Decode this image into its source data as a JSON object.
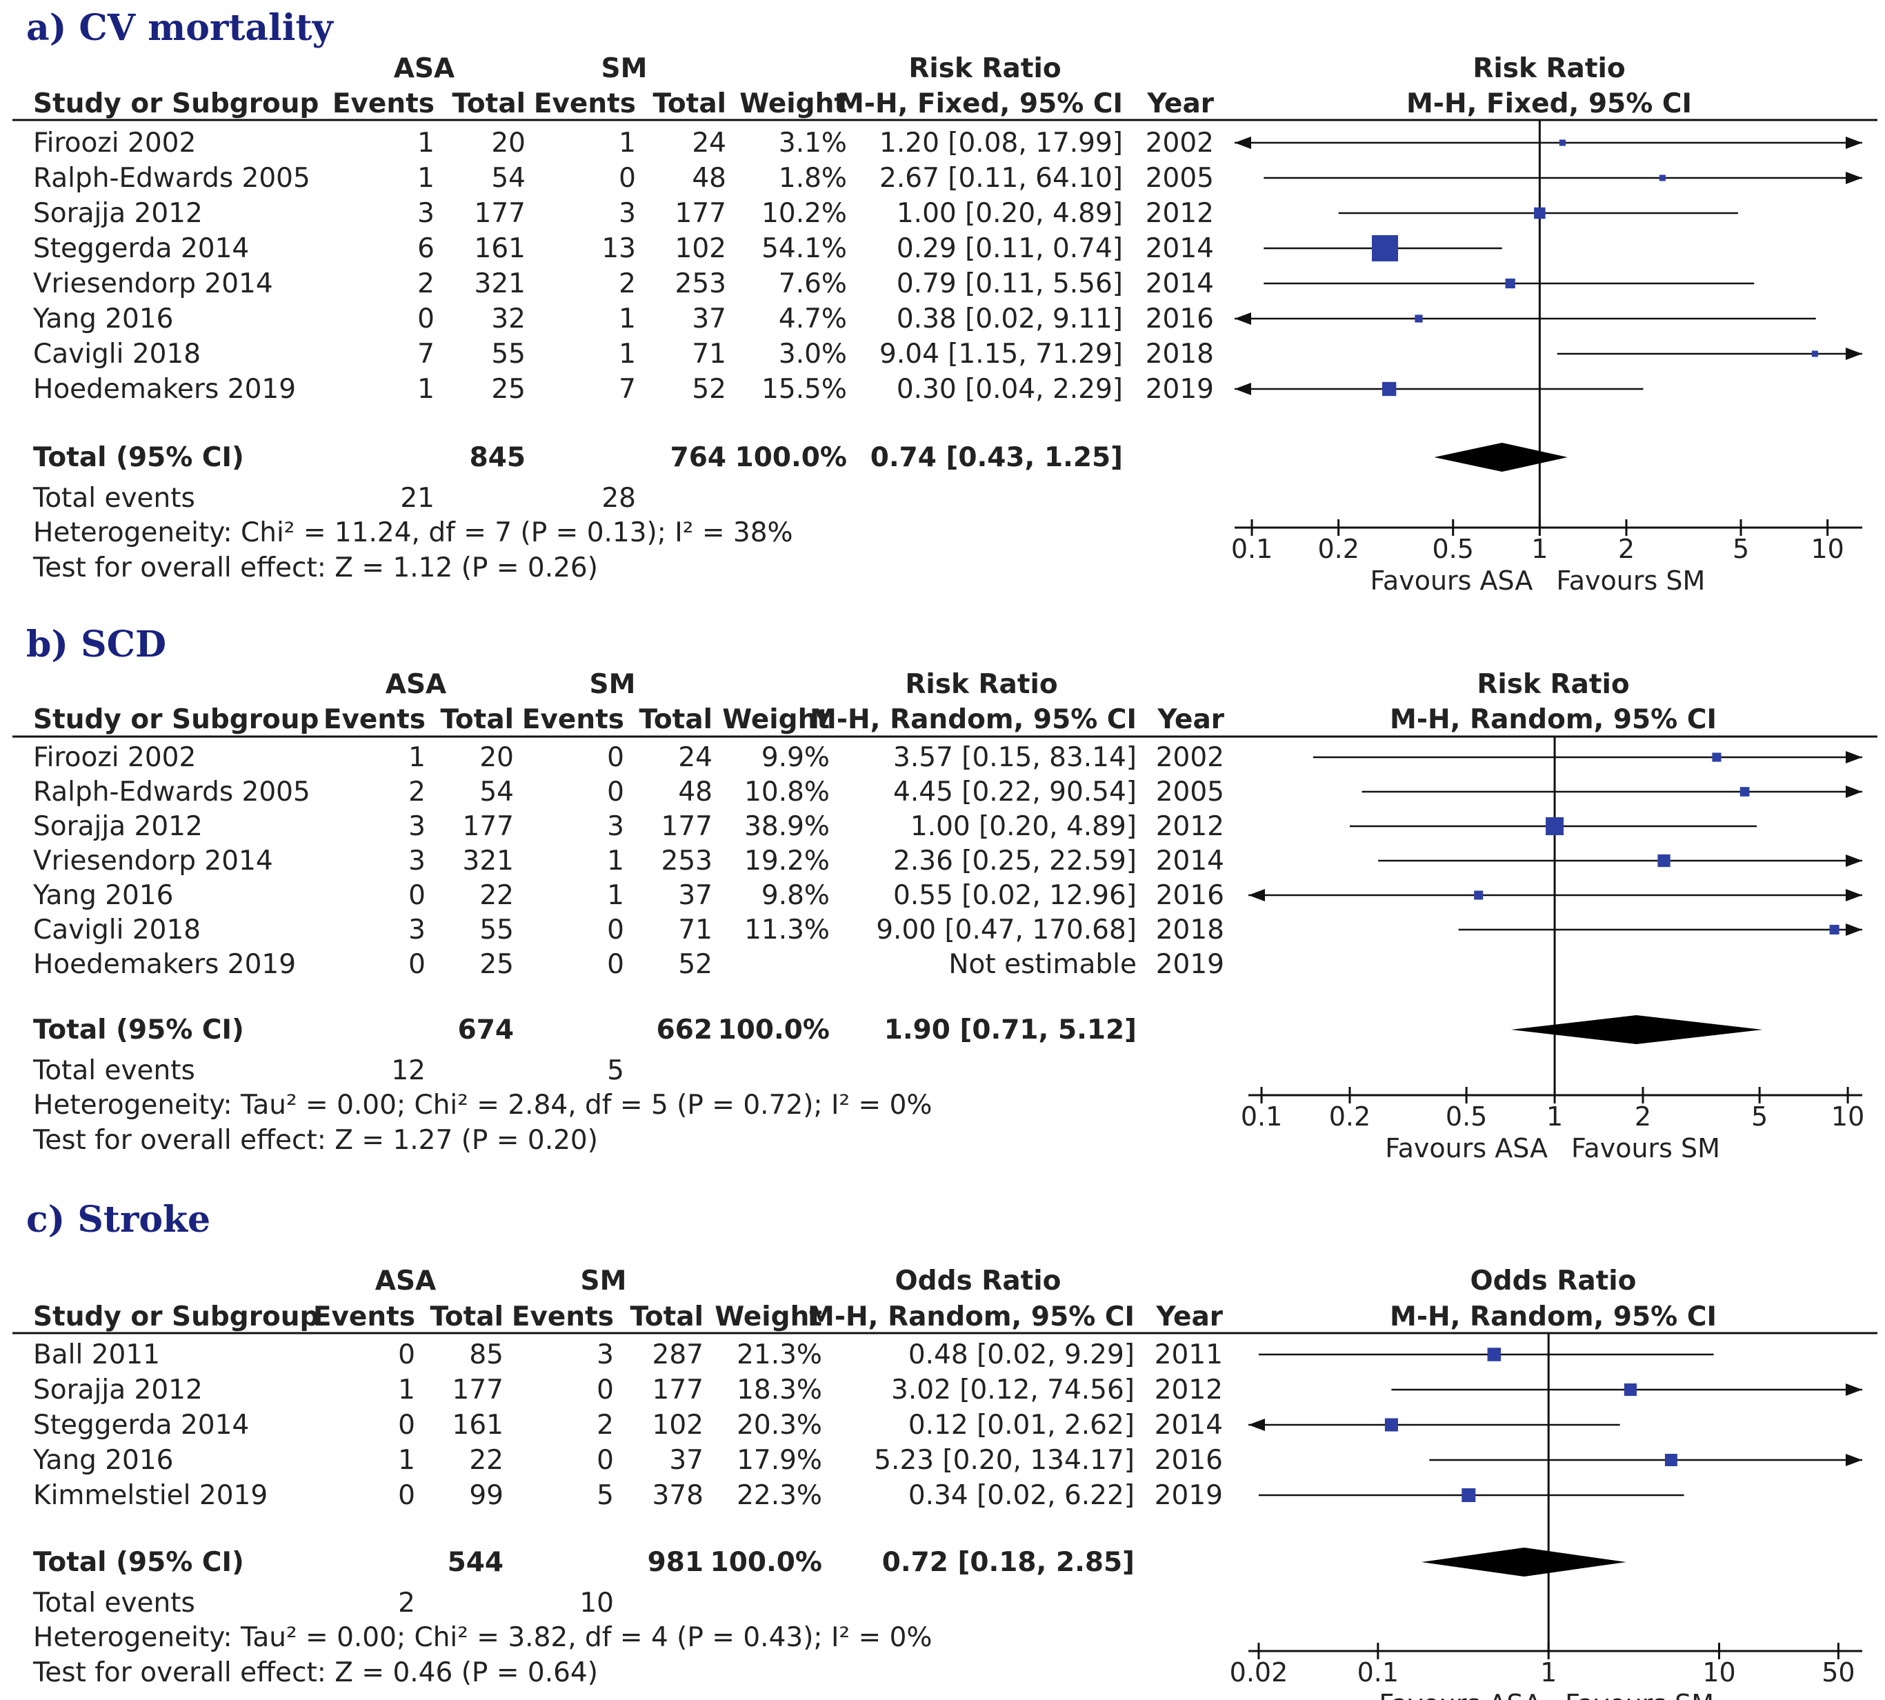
{
  "chart_data": [
    {
      "type": "forest",
      "panel_title": "a) CV mortality",
      "group1": "ASA",
      "group2": "SM",
      "col_headers": [
        "Study or Subgroup",
        "Events",
        "Total",
        "Events",
        "Total",
        "Weight",
        "M-H, Fixed, 95% CI",
        "Year"
      ],
      "measure_header": "Risk Ratio",
      "plot_header": "Risk Ratio",
      "plot_subheader": "M-H, Fixed, 95% CI",
      "studies": [
        {
          "name": "Firoozi 2002",
          "e1": "1",
          "t1": "20",
          "e2": "1",
          "t2": "24",
          "weight": "3.1%",
          "ci_text": "1.20 [0.08, 17.99]",
          "year": "2002",
          "est": 1.2,
          "lo": 0.08,
          "hi": 17.99
        },
        {
          "name": "Ralph-Edwards 2005",
          "e1": "1",
          "t1": "54",
          "e2": "0",
          "t2": "48",
          "weight": "1.8%",
          "ci_text": "2.67 [0.11, 64.10]",
          "year": "2005",
          "est": 2.67,
          "lo": 0.11,
          "hi": 64.1
        },
        {
          "name": "Sorajja 2012",
          "e1": "3",
          "t1": "177",
          "e2": "3",
          "t2": "177",
          "weight": "10.2%",
          "ci_text": "1.00 [0.20, 4.89]",
          "year": "2012",
          "est": 1.0,
          "lo": 0.2,
          "hi": 4.89
        },
        {
          "name": "Steggerda 2014",
          "e1": "6",
          "t1": "161",
          "e2": "13",
          "t2": "102",
          "weight": "54.1%",
          "ci_text": "0.29 [0.11, 0.74]",
          "year": "2014",
          "est": 0.29,
          "lo": 0.11,
          "hi": 0.74
        },
        {
          "name": "Vriesendorp 2014",
          "e1": "2",
          "t1": "321",
          "e2": "2",
          "t2": "253",
          "weight": "7.6%",
          "ci_text": "0.79 [0.11, 5.56]",
          "year": "2014",
          "est": 0.79,
          "lo": 0.11,
          "hi": 5.56
        },
        {
          "name": "Yang 2016",
          "e1": "0",
          "t1": "32",
          "e2": "1",
          "t2": "37",
          "weight": "4.7%",
          "ci_text": "0.38 [0.02, 9.11]",
          "year": "2016",
          "est": 0.38,
          "lo": 0.02,
          "hi": 9.11
        },
        {
          "name": "Cavigli 2018",
          "e1": "7",
          "t1": "55",
          "e2": "1",
          "t2": "71",
          "weight": "3.0%",
          "ci_text": "9.04 [1.15, 71.29]",
          "year": "2018",
          "est": 9.04,
          "lo": 1.15,
          "hi": 71.29
        },
        {
          "name": "Hoedemakers 2019",
          "e1": "1",
          "t1": "25",
          "e2": "7",
          "t2": "52",
          "weight": "15.5%",
          "ci_text": "0.30 [0.04, 2.29]",
          "year": "2019",
          "est": 0.3,
          "lo": 0.04,
          "hi": 2.29
        }
      ],
      "total": {
        "label": "Total (95% CI)",
        "t1": "845",
        "t2": "764",
        "weight": "100.0%",
        "ci_text": "0.74 [0.43, 1.25]",
        "est": 0.74,
        "lo": 0.43,
        "hi": 1.25
      },
      "total_events": {
        "label": "Total events",
        "e1": "21",
        "e2": "28"
      },
      "heterogeneity": "Heterogeneity: Chi² = 11.24, df = 7 (P = 0.13); I² = 38%",
      "overall_test": "Test for overall effect: Z = 1.12 (P = 0.26)",
      "axis": {
        "scale": "log",
        "min": 0.1,
        "max": 10,
        "ticks": [
          0.1,
          0.2,
          0.5,
          1,
          2,
          5,
          10
        ],
        "tick_labels": [
          "0.1",
          "0.2",
          "0.5",
          "1",
          "2",
          "5",
          "10"
        ]
      },
      "favours_left": "Favours ASA",
      "favours_right": "Favours SM"
    },
    {
      "type": "forest",
      "panel_title": "b) SCD",
      "group1": "ASA",
      "group2": "SM",
      "col_headers": [
        "Study or Subgroup",
        "Events",
        "Total",
        "Events",
        "Total",
        "Weight",
        "M-H, Random, 95% CI",
        "Year"
      ],
      "measure_header": "Risk Ratio",
      "plot_header": "Risk Ratio",
      "plot_subheader": "M-H, Random, 95% CI",
      "studies": [
        {
          "name": "Firoozi 2002",
          "e1": "1",
          "t1": "20",
          "e2": "0",
          "t2": "24",
          "weight": "9.9%",
          "ci_text": "3.57 [0.15, 83.14]",
          "year": "2002",
          "est": 3.57,
          "lo": 0.15,
          "hi": 83.14
        },
        {
          "name": "Ralph-Edwards 2005",
          "e1": "2",
          "t1": "54",
          "e2": "0",
          "t2": "48",
          "weight": "10.8%",
          "ci_text": "4.45 [0.22, 90.54]",
          "year": "2005",
          "est": 4.45,
          "lo": 0.22,
          "hi": 90.54
        },
        {
          "name": "Sorajja 2012",
          "e1": "3",
          "t1": "177",
          "e2": "3",
          "t2": "177",
          "weight": "38.9%",
          "ci_text": "1.00 [0.20, 4.89]",
          "year": "2012",
          "est": 1.0,
          "lo": 0.2,
          "hi": 4.89
        },
        {
          "name": "Vriesendorp 2014",
          "e1": "3",
          "t1": "321",
          "e2": "1",
          "t2": "253",
          "weight": "19.2%",
          "ci_text": "2.36 [0.25, 22.59]",
          "year": "2014",
          "est": 2.36,
          "lo": 0.25,
          "hi": 22.59
        },
        {
          "name": "Yang 2016",
          "e1": "0",
          "t1": "22",
          "e2": "1",
          "t2": "37",
          "weight": "9.8%",
          "ci_text": "0.55 [0.02, 12.96]",
          "year": "2016",
          "est": 0.55,
          "lo": 0.02,
          "hi": 12.96
        },
        {
          "name": "Cavigli 2018",
          "e1": "3",
          "t1": "55",
          "e2": "0",
          "t2": "71",
          "weight": "11.3%",
          "ci_text": "9.00 [0.47, 170.68]",
          "year": "2018",
          "est": 9.0,
          "lo": 0.47,
          "hi": 170.68
        },
        {
          "name": "Hoedemakers 2019",
          "e1": "0",
          "t1": "25",
          "e2": "0",
          "t2": "52",
          "weight": "",
          "ci_text": "Not estimable",
          "year": "2019",
          "est": null,
          "lo": null,
          "hi": null
        }
      ],
      "total": {
        "label": "Total (95% CI)",
        "t1": "674",
        "t2": "662",
        "weight": "100.0%",
        "ci_text": "1.90 [0.71, 5.12]",
        "est": 1.9,
        "lo": 0.71,
        "hi": 5.12
      },
      "total_events": {
        "label": "Total events",
        "e1": "12",
        "e2": "5"
      },
      "heterogeneity": "Heterogeneity: Tau² = 0.00; Chi² = 2.84, df = 5 (P = 0.72); I² = 0%",
      "overall_test": "Test for overall effect: Z = 1.27 (P = 0.20)",
      "axis": {
        "scale": "log",
        "min": 0.1,
        "max": 10,
        "ticks": [
          0.1,
          0.2,
          0.5,
          1,
          2,
          5,
          10
        ],
        "tick_labels": [
          "0.1",
          "0.2",
          "0.5",
          "1",
          "2",
          "5",
          "10"
        ]
      },
      "favours_left": "Favours ASA",
      "favours_right": "Favours SM"
    },
    {
      "type": "forest",
      "panel_title": "c) Stroke",
      "group1": "ASA",
      "group2": "SM",
      "col_headers": [
        "Study or Subgroup",
        "Events",
        "Total",
        "Events",
        "Total",
        "Weight",
        "M-H, Random, 95% CI",
        "Year"
      ],
      "measure_header": "Odds Ratio",
      "plot_header": "Odds Ratio",
      "plot_subheader": "M-H, Random, 95% CI",
      "studies": [
        {
          "name": "Ball 2011",
          "e1": "0",
          "t1": "85",
          "e2": "3",
          "t2": "287",
          "weight": "21.3%",
          "ci_text": "0.48 [0.02, 9.29]",
          "year": "2011",
          "est": 0.48,
          "lo": 0.02,
          "hi": 9.29
        },
        {
          "name": "Sorajja 2012",
          "e1": "1",
          "t1": "177",
          "e2": "0",
          "t2": "177",
          "weight": "18.3%",
          "ci_text": "3.02 [0.12, 74.56]",
          "year": "2012",
          "est": 3.02,
          "lo": 0.12,
          "hi": 74.56
        },
        {
          "name": "Steggerda 2014",
          "e1": "0",
          "t1": "161",
          "e2": "2",
          "t2": "102",
          "weight": "20.3%",
          "ci_text": "0.12 [0.01, 2.62]",
          "year": "2014",
          "est": 0.12,
          "lo": 0.01,
          "hi": 2.62
        },
        {
          "name": "Yang 2016",
          "e1": "1",
          "t1": "22",
          "e2": "0",
          "t2": "37",
          "weight": "17.9%",
          "ci_text": "5.23 [0.20, 134.17]",
          "year": "2016",
          "est": 5.23,
          "lo": 0.2,
          "hi": 134.17
        },
        {
          "name": "Kimmelstiel 2019",
          "e1": "0",
          "t1": "99",
          "e2": "5",
          "t2": "378",
          "weight": "22.3%",
          "ci_text": "0.34 [0.02, 6.22]",
          "year": "2019",
          "est": 0.34,
          "lo": 0.02,
          "hi": 6.22
        }
      ],
      "total": {
        "label": "Total (95% CI)",
        "t1": "544",
        "t2": "981",
        "weight": "100.0%",
        "ci_text": "0.72 [0.18, 2.85]",
        "est": 0.72,
        "lo": 0.18,
        "hi": 2.85
      },
      "total_events": {
        "label": "Total events",
        "e1": "2",
        "e2": "10"
      },
      "heterogeneity": "Heterogeneity: Tau² = 0.00; Chi² = 3.82, df = 4 (P = 0.43); I² = 0%",
      "overall_test": "Test for overall effect: Z = 0.46 (P = 0.64)",
      "axis": {
        "scale": "log",
        "min": 0.02,
        "max": 50,
        "ticks": [
          0.02,
          0.1,
          1,
          10,
          50
        ],
        "tick_labels": [
          "0.02",
          "0.1",
          "1",
          "10",
          "50"
        ]
      },
      "favours_left": "Favours ASA",
      "favours_right": "Favours SM"
    }
  ]
}
